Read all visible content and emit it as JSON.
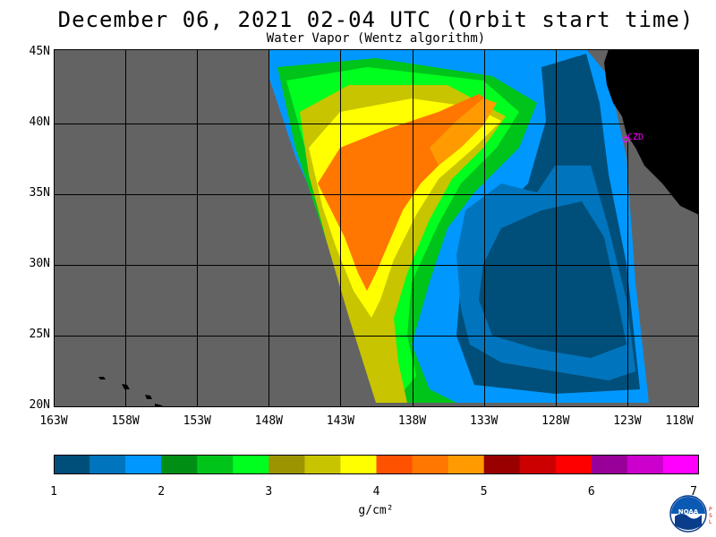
{
  "header": {
    "title": "December 06, 2021  02-04 UTC  (Orbit start time)",
    "subtitle": "Water Vapor (Wentz algorithm)"
  },
  "map": {
    "lat_labels": [
      "45N",
      "40N",
      "35N",
      "30N",
      "25N",
      "20N"
    ],
    "lon_labels": [
      "163W",
      "158W",
      "153W",
      "148W",
      "143W",
      "138W",
      "133W",
      "128W",
      "123W",
      "118W"
    ],
    "station_label": "CZD",
    "colors": {
      "no_data": "#636363",
      "land": "#000000",
      "grid": "#000000",
      "station": "#ff00ff"
    }
  },
  "colorbar": {
    "tick_labels": [
      "1",
      "2",
      "3",
      "4",
      "5",
      "6",
      "7"
    ],
    "unit": "g/cm²",
    "colors": [
      "#004f7a",
      "#0075bd",
      "#0098ff",
      "#008f14",
      "#00c41a",
      "#00ff1f",
      "#9c9400",
      "#c8c400",
      "#ffff00",
      "#ff5200",
      "#ff7600",
      "#ff9b00",
      "#990000",
      "#cc0000",
      "#ff0000",
      "#990099",
      "#cc00cc",
      "#ff00ff"
    ]
  },
  "logo": {
    "name": "noaa-logo",
    "text": "NOAA",
    "side_text": [
      "P",
      "S",
      "L"
    ]
  }
}
